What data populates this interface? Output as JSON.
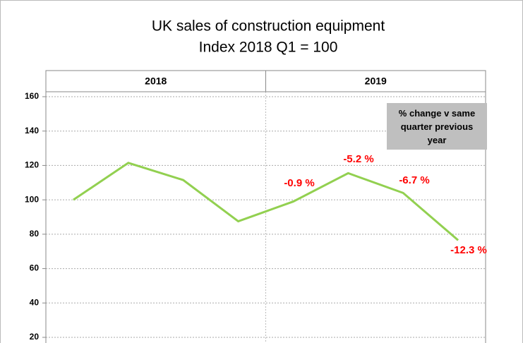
{
  "chart_data": {
    "type": "line",
    "title": "UK sales of construction equipment",
    "subtitle": "Index 2018 Q1 = 100",
    "groups": [
      "2018",
      "2019"
    ],
    "categories": [
      null,
      null,
      null,
      null,
      null,
      null,
      null,
      null
    ],
    "values": [
      100,
      121.5,
      111.5,
      87.5,
      99,
      115.5,
      104,
      76.5
    ],
    "color": "#92d050",
    "ylim": [
      20,
      160
    ],
    "yticks": [
      20,
      40,
      60,
      80,
      100,
      120,
      140,
      160
    ],
    "grid": true,
    "annotations": [
      "-0.9 %",
      "-5.2 %",
      "-6.7 %",
      "-12.3 %"
    ],
    "note": "% change v same quarter previous year"
  }
}
